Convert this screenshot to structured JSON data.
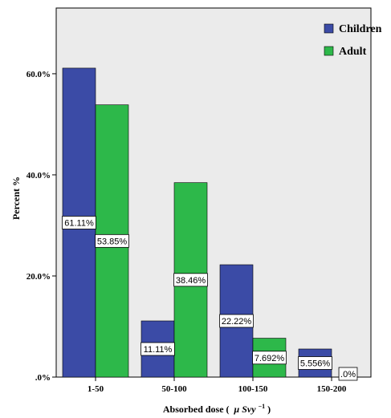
{
  "chart_data": {
    "type": "bar",
    "categories": [
      "1-50",
      "50-100",
      "100-150",
      "150-200"
    ],
    "series": [
      {
        "name": "Children",
        "values": [
          61.11,
          11.11,
          22.22,
          5.556
        ],
        "labels": [
          "61.11%",
          "11.11%",
          "22.22%",
          "5.556%"
        ],
        "color": "#3b4ba6"
      },
      {
        "name": "Adult",
        "values": [
          53.85,
          38.46,
          7.692,
          0
        ],
        "labels": [
          "53.85%",
          "38.46%",
          "7.692%",
          ".0%"
        ],
        "color": "#2db84a"
      }
    ],
    "yticks": [
      0,
      20,
      40,
      60
    ],
    "ytick_labels": [
      ".0%",
      "20.0%",
      "40.0%",
      "60.0%"
    ],
    "ylim": [
      0,
      73
    ],
    "xlabel_main": "Absorbed dose (",
    "xlabel_mu": "μ",
    "xlabel_unit": "Svy",
    "xlabel_exp": "−1",
    "xlabel_close": ")",
    "ylabel": "Percent %",
    "legend_position": "top-right",
    "grid": false,
    "plot_background": "#ebebeb"
  }
}
